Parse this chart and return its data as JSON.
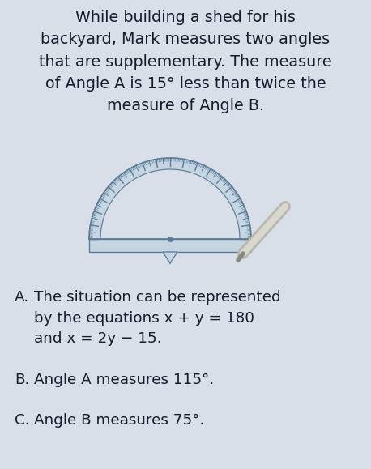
{
  "background_color": "#d8dfe8",
  "title_lines": [
    "While building a shed for his",
    "backyard, Mark measures two angles",
    "that are supplementary. The measure",
    "of Angle A is 15° less than twice the",
    "measure of Angle B."
  ],
  "text_color": "#1a1a2e",
  "font_family": "DejaVu Sans",
  "title_fontsize": 13.8,
  "body_fontsize": 13.2,
  "proto_fill": "#c5d5e2",
  "proto_edge": "#5a7a96",
  "proto_inner_bg": "#d8dfe8",
  "pencil_body": "#b8b8b0",
  "pencil_highlight": "#d8d8cc"
}
